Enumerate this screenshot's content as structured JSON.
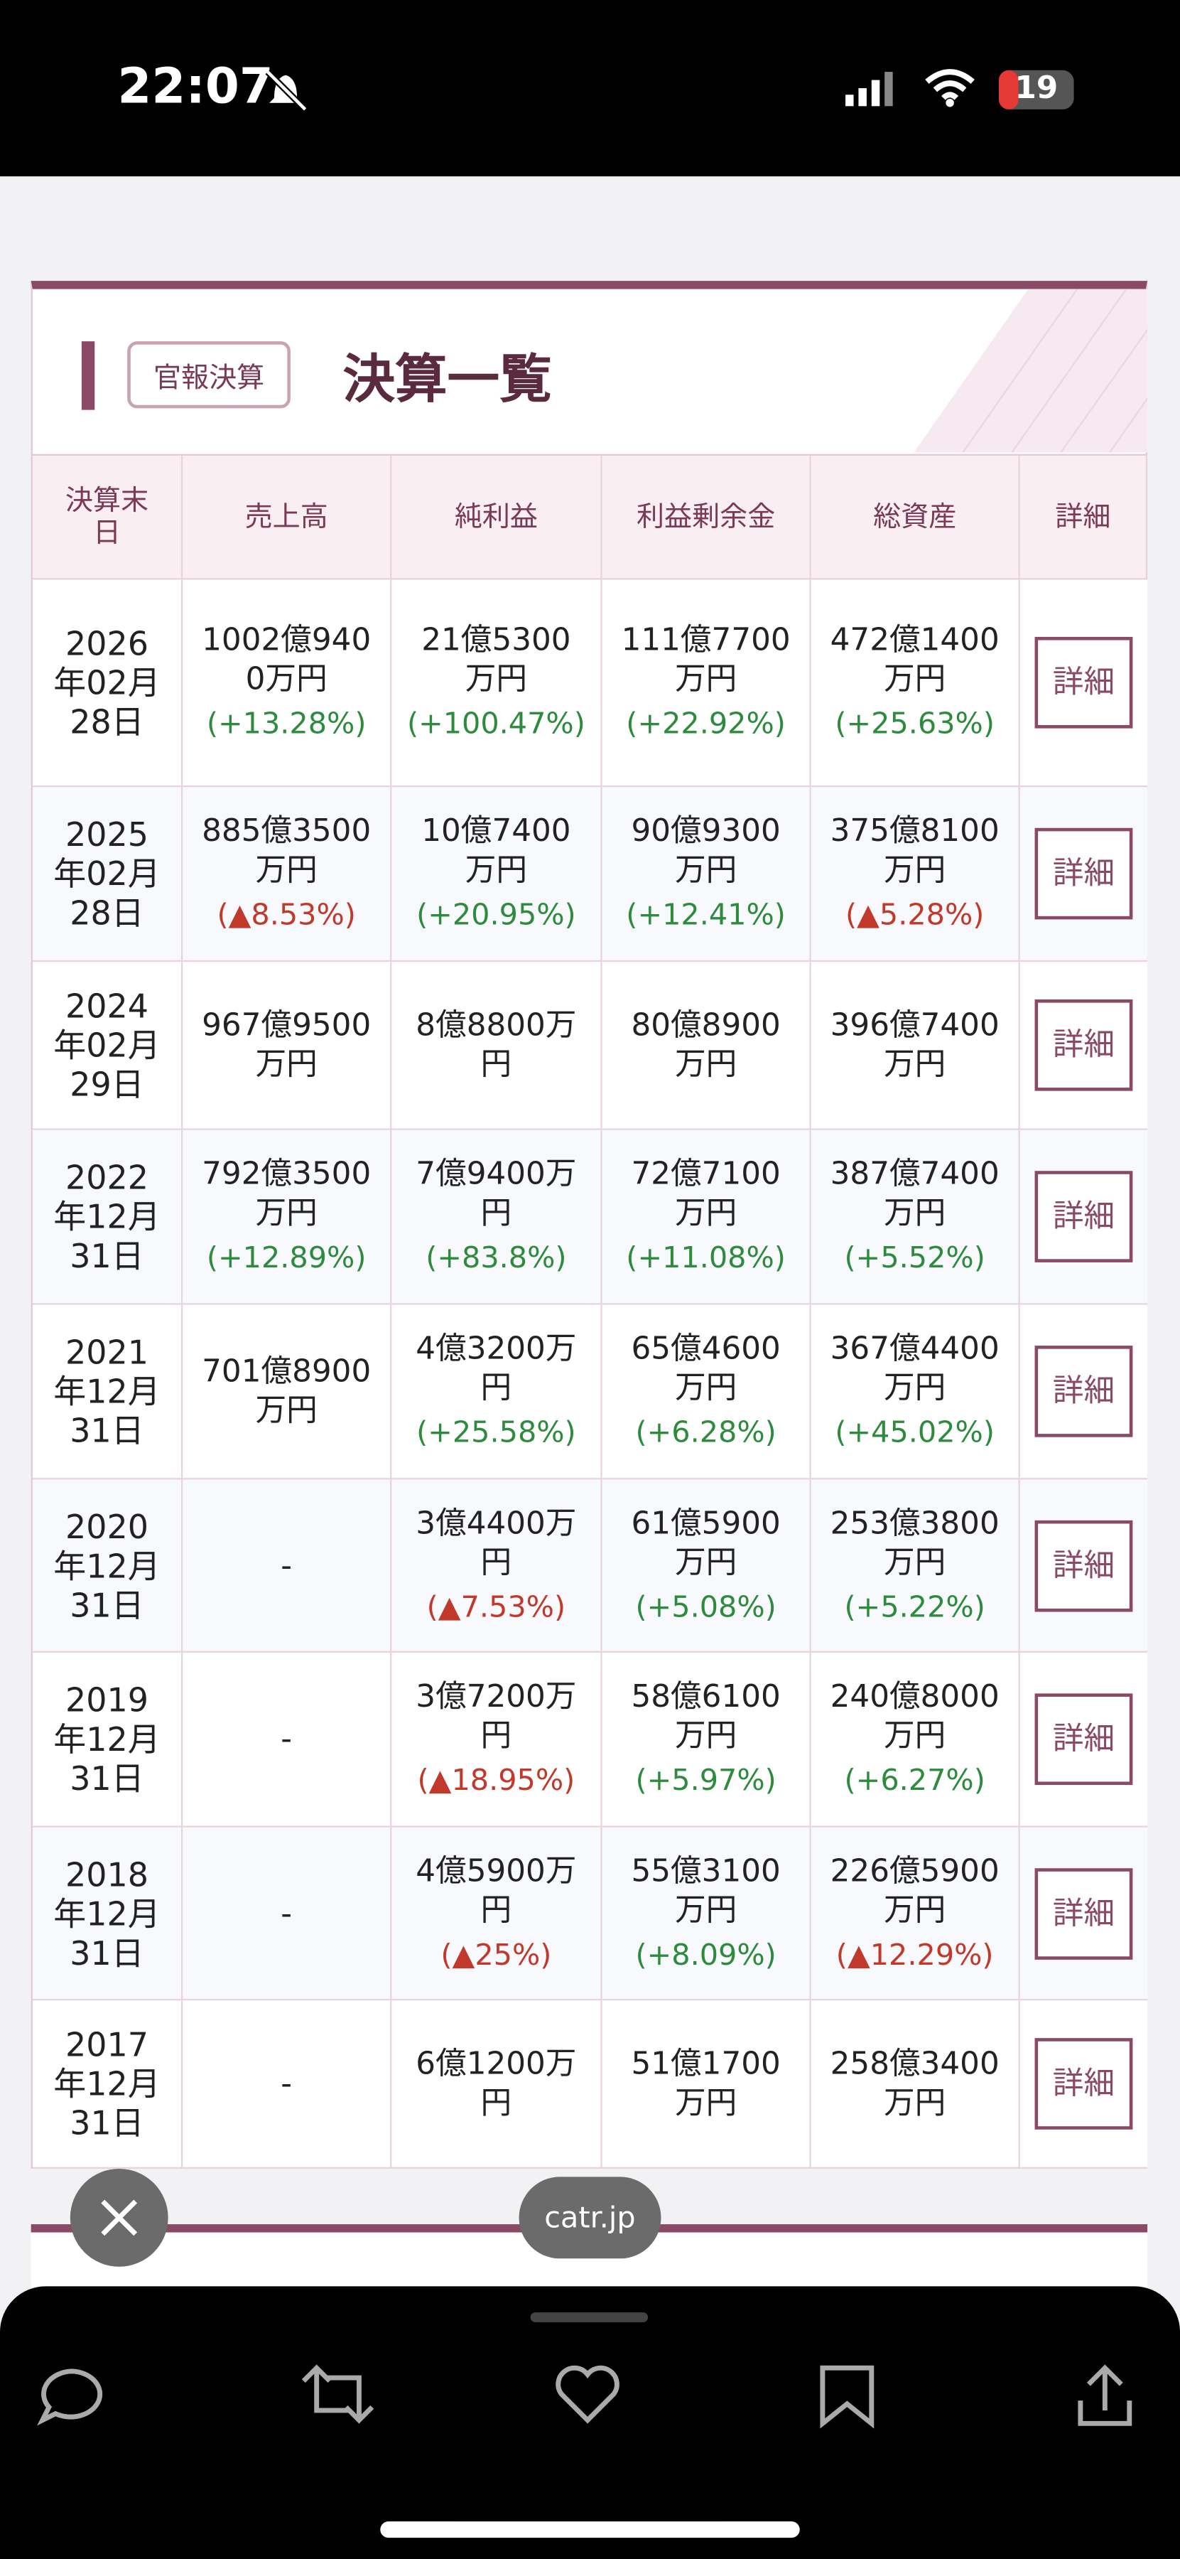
{
  "status_bar": {
    "time": "22:07",
    "battery": "19"
  },
  "card": {
    "badge": "官報決算",
    "title": "決算一覧"
  },
  "table": {
    "headers": [
      "決算末日",
      "売上高",
      "純利益",
      "利益剰余金",
      "総資産",
      "詳細"
    ],
    "rows": [
      {
        "date": "2026年02月28日",
        "cells": [
          {
            "value": "1002億9400万円",
            "change": "(+13.28%)"
          },
          {
            "value": "21億5300万円",
            "change": "(+100.47%)"
          },
          {
            "value": "111億7700万円",
            "change": "(+22.92%)"
          },
          {
            "value": "472億1400万円",
            "change": "(+25.63%)"
          }
        ],
        "button": "詳細"
      },
      {
        "date": "2025年02月28日",
        "cells": [
          {
            "value": "885億3500万円",
            "change": "(▲8.53%)"
          },
          {
            "value": "10億7400万円",
            "change": "(+20.95%)"
          },
          {
            "value": "90億9300万円",
            "change": "(+12.41%)"
          },
          {
            "value": "375億8100万円",
            "change": "(▲5.28%)"
          }
        ],
        "button": "詳細"
      },
      {
        "date": "2024年02月29日",
        "cells": [
          {
            "value": "967億9500万円",
            "change": null
          },
          {
            "value": "8億8800万円",
            "change": null
          },
          {
            "value": "80億8900万円",
            "change": null
          },
          {
            "value": "396億7400万円",
            "change": null
          }
        ],
        "button": "詳細"
      },
      {
        "date": "2022年12月31日",
        "cells": [
          {
            "value": "792億3500万円",
            "change": "(+12.89%)"
          },
          {
            "value": "7億9400万円",
            "change": "(+83.8%)"
          },
          {
            "value": "72億7100万円",
            "change": "(+11.08%)"
          },
          {
            "value": "387億7400万円",
            "change": "(+5.52%)"
          }
        ],
        "button": "詳細"
      },
      {
        "date": "2021年12月31日",
        "cells": [
          {
            "value": "701億8900万円",
            "change": null
          },
          {
            "value": "4億3200万円",
            "change": "(+25.58%)"
          },
          {
            "value": "65億4600万円",
            "change": "(+6.28%)"
          },
          {
            "value": "367億4400万円",
            "change": "(+45.02%)"
          }
        ],
        "button": "詳細"
      },
      {
        "date": "2020年12月31日",
        "cells": [
          {
            "value": "-",
            "change": null
          },
          {
            "value": "3億4400万円",
            "change": "(▲7.53%)"
          },
          {
            "value": "61億5900万円",
            "change": "(+5.08%)"
          },
          {
            "value": "253億3800万円",
            "change": "(+5.22%)"
          }
        ],
        "button": "詳細"
      },
      {
        "date": "2019年12月31日",
        "cells": [
          {
            "value": "-",
            "change": null
          },
          {
            "value": "3億7200万円",
            "change": "(▲18.95%)"
          },
          {
            "value": "58億6100万円",
            "change": "(+5.97%)"
          },
          {
            "value": "240億8000万円",
            "change": "(+6.27%)"
          }
        ],
        "button": "詳細"
      },
      {
        "date": "2018年12月31日",
        "cells": [
          {
            "value": "-",
            "change": null
          },
          {
            "value": "4億5900万円",
            "change": "(▲25%)"
          },
          {
            "value": "55億3100万円",
            "change": "(+8.09%)"
          },
          {
            "value": "226億5900万円",
            "change": "(▲12.29%)"
          }
        ],
        "button": "詳細"
      },
      {
        "date": "2017年12月31日",
        "cells": [
          {
            "value": "-",
            "change": null
          },
          {
            "value": "6億1200万円",
            "change": null
          },
          {
            "value": "51億1700万円",
            "change": null
          },
          {
            "value": "258億3400万円",
            "change": null
          }
        ],
        "button": "詳細"
      }
    ]
  },
  "site_pill": "catr.jp"
}
